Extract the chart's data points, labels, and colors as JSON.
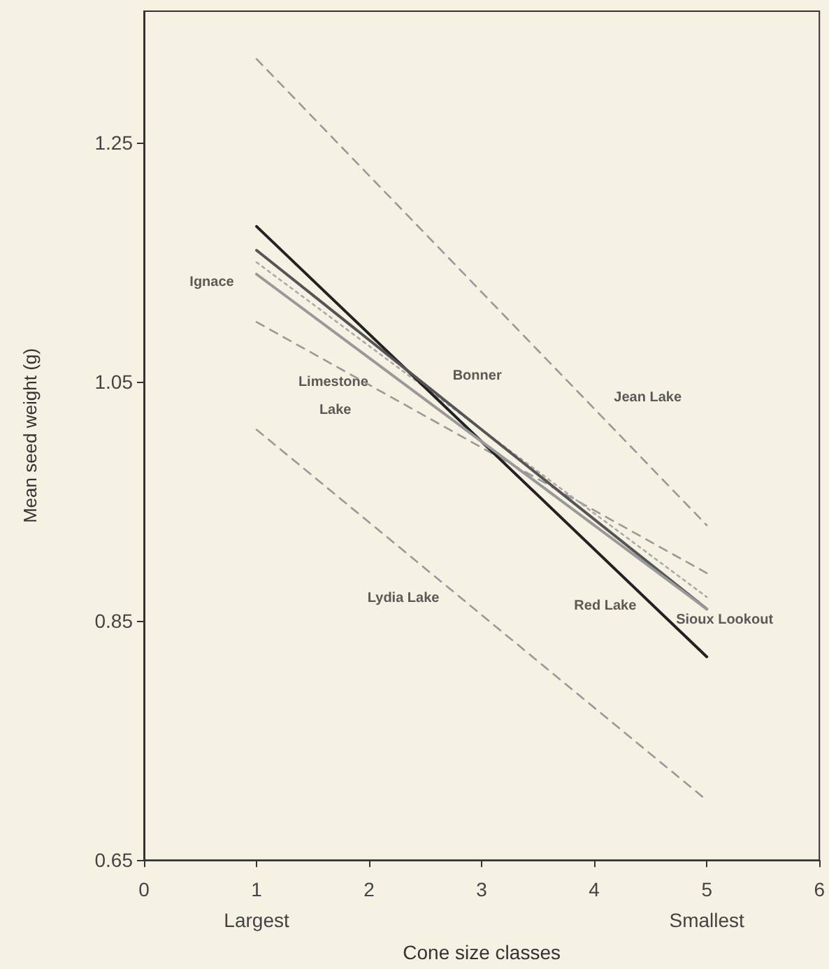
{
  "chart_data": {
    "type": "line",
    "xlabel": "Cone size classes",
    "ylabel": "Mean seed weight (g)",
    "xlim": [
      0,
      6
    ],
    "xticks": [
      0,
      {
        "value": 1,
        "label": "1\nLargest"
      },
      2,
      3,
      4,
      {
        "value": 5,
        "label": "5\nSmallest"
      },
      6
    ],
    "ylim": [
      0.65,
      1.36
    ],
    "yticks": [
      0.65,
      0.85,
      1.05,
      1.25
    ],
    "grid": false,
    "legend": false,
    "marker": "none",
    "x": [
      1,
      5
    ],
    "series": [
      {
        "name": "Jean Lake",
        "color": "#999999",
        "line_style": "dashed",
        "values": [
          1.32,
          0.93
        ]
      },
      {
        "name": "Limestone Lake",
        "color": "#999999",
        "line_style": "dashed",
        "values": [
          1.1,
          0.89
        ]
      },
      {
        "name": "Bonner",
        "color": "#aaaaaa",
        "line_style": "dotted",
        "values": [
          1.15,
          0.87
        ]
      },
      {
        "name": "Lydia Lake",
        "color": "#999999",
        "line_style": "dashed",
        "values": [
          1.01,
          0.7
        ]
      },
      {
        "name": "Red Lake",
        "color": "#222222",
        "line_style": "solid",
        "values": [
          1.18,
          0.82
        ]
      },
      {
        "name": "Sioux Lookout",
        "color": "#555555",
        "line_style": "solid",
        "values": [
          1.16,
          0.86
        ]
      },
      {
        "name": "Ignace",
        "color": "#999999",
        "line_style": "solid",
        "values": [
          1.14,
          0.86
        ]
      }
    ]
  }
}
